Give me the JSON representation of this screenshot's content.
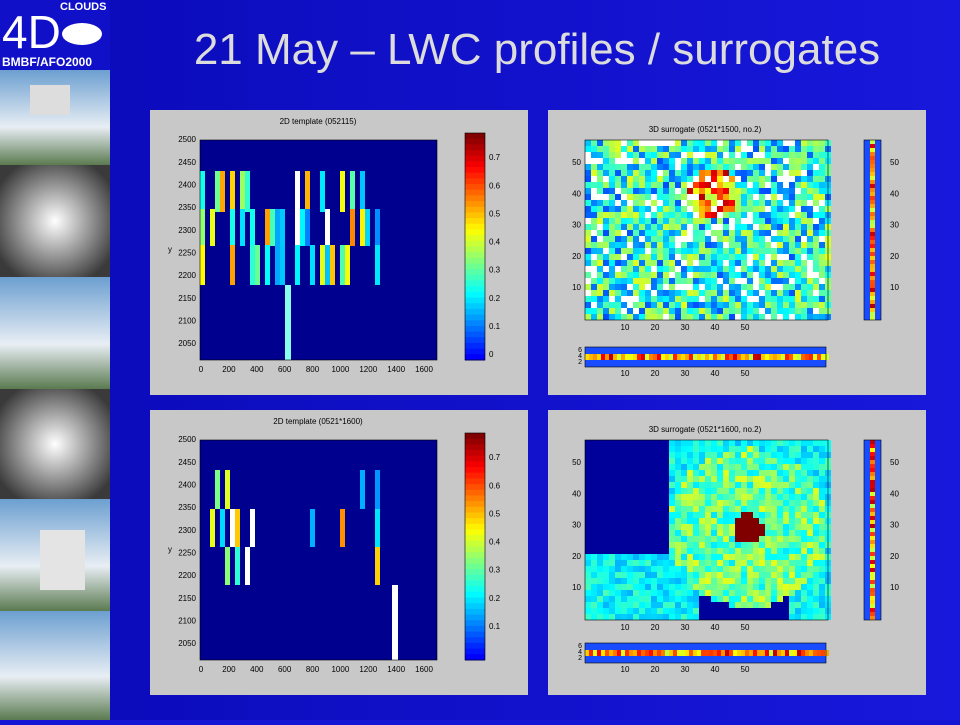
{
  "title": "21 May – LWC profiles / surrogates",
  "logo": {
    "brand": "4D",
    "word": "CLOUDS",
    "sub": "BMBF/AFO2000"
  },
  "panels": [
    {
      "kind": "2d",
      "title": "2D template (052115)",
      "ylabel": "y",
      "xticks": [
        "0",
        "200",
        "400",
        "600",
        "800",
        "1000",
        "1200",
        "1400",
        "1600"
      ],
      "yticks": [
        "2050",
        "2100",
        "2150",
        "2200",
        "2250",
        "2300",
        "2350",
        "2400",
        "2450",
        "2500"
      ],
      "colorbar": [
        "0",
        "0.1",
        "0.2",
        "0.3",
        "0.4",
        "0.5",
        "0.6",
        "0.7"
      ]
    },
    {
      "kind": "3d",
      "title": "3D surrogate (0521*1500, no.2)",
      "xticks": [
        "10",
        "20",
        "30",
        "40",
        "50"
      ],
      "yticks": [
        "10",
        "20",
        "30",
        "40",
        "50"
      ],
      "side_ticks": [
        "10",
        "20",
        "30",
        "40",
        "50"
      ],
      "strip_yticks": [
        "6",
        "4",
        "2"
      ],
      "strip_xticks": [
        "10",
        "20",
        "30",
        "40",
        "50"
      ]
    },
    {
      "kind": "2d",
      "title": "2D template (0521*1600)",
      "ylabel": "y",
      "xticks": [
        "0",
        "200",
        "400",
        "600",
        "800",
        "1000",
        "1200",
        "1400",
        "1600"
      ],
      "yticks": [
        "2050",
        "2100",
        "2150",
        "2200",
        "2250",
        "2300",
        "2350",
        "2400",
        "2450",
        "2500"
      ],
      "colorbar": [
        "0.1",
        "0.2",
        "0.3",
        "0.4",
        "0.5",
        "0.6",
        "0.7"
      ]
    },
    {
      "kind": "3d",
      "title": "3D surrogate (0521*1600, no.2)",
      "xticks": [
        "10",
        "20",
        "30",
        "40",
        "50"
      ],
      "yticks": [
        "10",
        "20",
        "30",
        "40",
        "50"
      ],
      "side_ticks": [
        "10",
        "20",
        "30",
        "40",
        "50"
      ],
      "strip_yticks": [
        "6",
        "4",
        "2"
      ],
      "strip_xticks": [
        "10",
        "20",
        "30",
        "40",
        "50"
      ]
    }
  ]
}
